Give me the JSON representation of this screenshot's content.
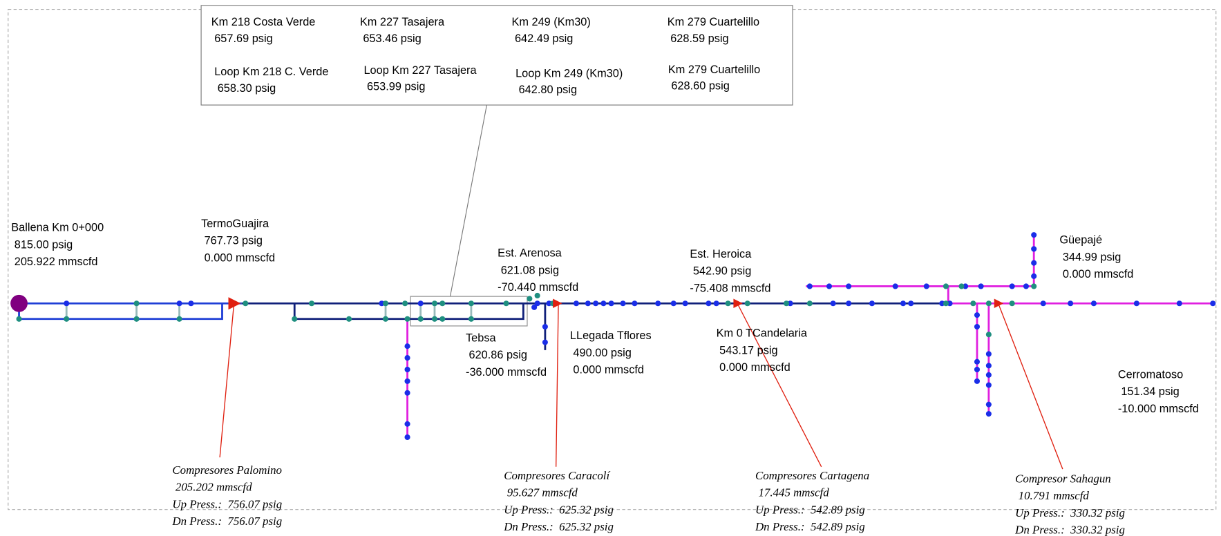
{
  "inset": [
    {
      "name": "Km 218 Costa Verde",
      "pressure": "657.69 psig"
    },
    {
      "name": "Km 227 Tasajera",
      "pressure": "653.46 psig"
    },
    {
      "name": "Km 249 (Km30)",
      "pressure": "642.49 psig"
    },
    {
      "name": "Km 279 Cuartelillo",
      "pressure": "628.59 psig"
    },
    {
      "name": "Loop Km 218 C. Verde",
      "pressure": "658.30 psig"
    },
    {
      "name": "Loop Km 227 Tasajera",
      "pressure": "653.99 psig"
    },
    {
      "name": "Loop Km 249 (Km30)",
      "pressure": "642.80 psig"
    },
    {
      "name": "Km 279 Cuartelillo",
      "pressure": "628.60 psig"
    }
  ],
  "stations": [
    {
      "name": "Ballena Km 0+000",
      "pressure": "815.00 psig",
      "flow": "205.922 mmscfd"
    },
    {
      "name": "TermoGuajira",
      "pressure": "767.73 psig",
      "flow": "0.000 mmscfd"
    },
    {
      "name": "Est. Arenosa",
      "pressure": "621.08 psig",
      "flow": "-70.440 mmscfd"
    },
    {
      "name": "Est. Heroica",
      "pressure": "542.90 psig",
      "flow": "-75.408 mmscfd"
    },
    {
      "name": "Güepajé",
      "pressure": "344.99 psig",
      "flow": "0.000 mmscfd"
    },
    {
      "name": "Tebsa",
      "pressure": "620.86 psig",
      "flow": "-36.000 mmscfd"
    },
    {
      "name": "LLegada Tflores",
      "pressure": "490.00 psig",
      "flow": "0.000 mmscfd"
    },
    {
      "name": "Km 0 TCandelaria",
      "pressure": "543.17 psig",
      "flow": "0.000 mmscfd"
    },
    {
      "name": "Cerromatoso",
      "pressure": "151.34 psig",
      "flow": "-10.000 mmscfd"
    }
  ],
  "compressors": [
    {
      "name": "Compresores Palomino",
      "flow": "205.202 mmscfd",
      "up": "Up Press.:  756.07 psig",
      "dn": "Dn Press.:  756.07 psig"
    },
    {
      "name": "Compresores Caracolí",
      "flow": "95.627 mmscfd",
      "up": "Up Press.:  625.32 psig",
      "dn": "Dn Press.:  625.32 psig"
    },
    {
      "name": "Compresores Cartagena",
      "flow": "17.445 mmscfd",
      "up": "Up Press.:  542.89 psig",
      "dn": "Dn Press.:  542.89 psig"
    },
    {
      "name": "Compresor Sahagun",
      "flow": "10.791 mmscfd",
      "up": "Up Press.:  330.32 psig",
      "dn": "Dn Press.:  330.32 psig"
    }
  ]
}
